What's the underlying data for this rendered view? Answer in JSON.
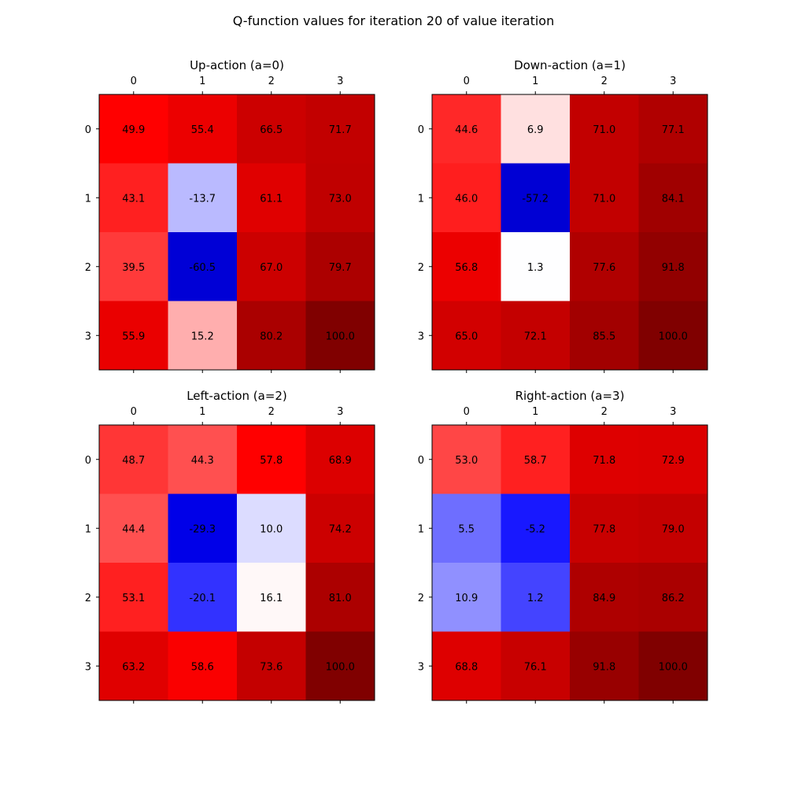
{
  "figure": {
    "title": "Q-function values for iteration 20 of value iteration"
  },
  "chart_data": [
    {
      "type": "heatmap",
      "title": "Up-action (a=0)",
      "x_ticks": [
        "0",
        "1",
        "2",
        "3"
      ],
      "y_ticks": [
        "0",
        "1",
        "2",
        "3"
      ],
      "x_axis_position": "top",
      "grid": false,
      "colormap": "seismic",
      "values": [
        [
          49.9,
          55.4,
          66.5,
          71.7
        ],
        [
          43.1,
          -13.7,
          61.1,
          73.0
        ],
        [
          39.5,
          -60.5,
          67.0,
          79.7
        ],
        [
          55.9,
          15.2,
          80.2,
          100.0
        ]
      ],
      "colors": [
        [
          "#ff0000",
          "#ec0000",
          "#cc0000",
          "#c20000"
        ],
        [
          "#ff2020",
          "#babaff",
          "#e00000",
          "#c00000"
        ],
        [
          "#ff3a3a",
          "#0000d6",
          "#cc0000",
          "#ac0000"
        ],
        [
          "#ea0000",
          "#ffaeae",
          "#aa0000",
          "#800000"
        ]
      ]
    },
    {
      "type": "heatmap",
      "title": "Down-action (a=1)",
      "x_ticks": [
        "0",
        "1",
        "2",
        "3"
      ],
      "y_ticks": [
        "0",
        "1",
        "2",
        "3"
      ],
      "x_axis_position": "top",
      "grid": false,
      "colormap": "seismic",
      "values": [
        [
          44.6,
          6.9,
          71.0,
          77.1
        ],
        [
          46.0,
          -57.2,
          71.0,
          84.1
        ],
        [
          56.8,
          1.3,
          77.6,
          91.8
        ],
        [
          65.0,
          72.1,
          85.5,
          100.0
        ]
      ],
      "colors": [
        [
          "#ff2828",
          "#ffe0e0",
          "#c20000",
          "#b00000"
        ],
        [
          "#ff1e1e",
          "#0000d4",
          "#c20000",
          "#a00000"
        ],
        [
          "#ec0000",
          "#fefeff",
          "#b00000",
          "#920000"
        ],
        [
          "#d20000",
          "#c40000",
          "#a20000",
          "#800000"
        ]
      ]
    },
    {
      "type": "heatmap",
      "title": "Left-action (a=2)",
      "x_ticks": [
        "0",
        "1",
        "2",
        "3"
      ],
      "y_ticks": [
        "0",
        "1",
        "2",
        "3"
      ],
      "x_axis_position": "top",
      "grid": false,
      "colormap": "seismic",
      "values": [
        [
          48.7,
          44.3,
          57.8,
          68.9
        ],
        [
          44.4,
          -29.3,
          10.0,
          74.2
        ],
        [
          53.1,
          -20.1,
          16.1,
          81.0
        ],
        [
          63.2,
          58.6,
          73.6,
          100.0
        ]
      ],
      "colors": [
        [
          "#ff3636",
          "#ff5050",
          "#ff0000",
          "#dc0000"
        ],
        [
          "#ff5050",
          "#0000e8",
          "#dcdcff",
          "#cc0000"
        ],
        [
          "#ff2020",
          "#3232ff",
          "#fff8f8",
          "#ac0000"
        ],
        [
          "#e00000",
          "#fa0000",
          "#c40000",
          "#800000"
        ]
      ]
    },
    {
      "type": "heatmap",
      "title": "Right-action (a=3)",
      "x_ticks": [
        "0",
        "1",
        "2",
        "3"
      ],
      "y_ticks": [
        "0",
        "1",
        "2",
        "3"
      ],
      "x_axis_position": "top",
      "grid": false,
      "colormap": "seismic",
      "values": [
        [
          53.0,
          58.7,
          71.8,
          72.9
        ],
        [
          5.5,
          -5.2,
          77.8,
          79.0
        ],
        [
          10.9,
          1.2,
          84.9,
          86.2
        ],
        [
          68.8,
          76.1,
          91.8,
          100.0
        ]
      ],
      "colors": [
        [
          "#ff4646",
          "#ff2020",
          "#de0000",
          "#dc0000"
        ],
        [
          "#6e6eff",
          "#1818ff",
          "#c80000",
          "#c40000"
        ],
        [
          "#9090ff",
          "#4444ff",
          "#ae0000",
          "#aa0000"
        ],
        [
          "#de0000",
          "#c80000",
          "#980000",
          "#800000"
        ]
      ]
    }
  ]
}
